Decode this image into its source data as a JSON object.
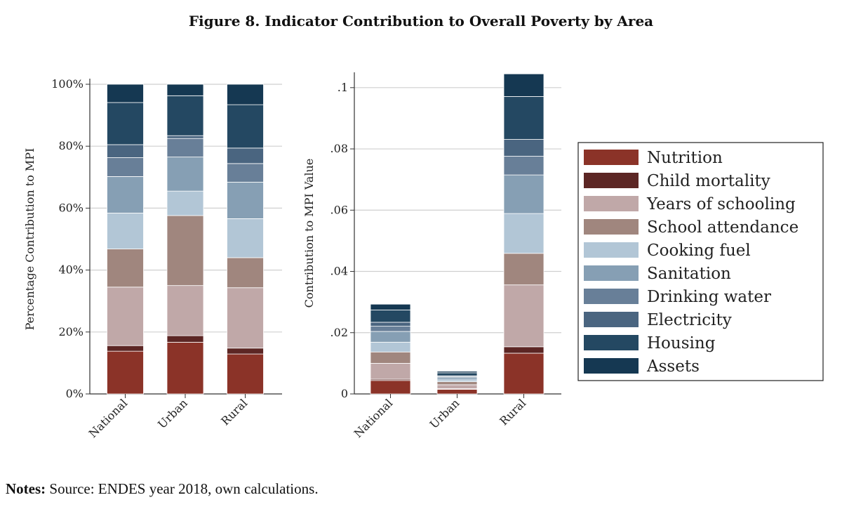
{
  "figure": {
    "title": "Figure 8. Indicator Contribution to Overall Poverty by Area",
    "notes_label": "Notes:",
    "notes_text": " Source: ENDES year 2018, own calculations."
  },
  "indicators": [
    {
      "name": "Nutrition",
      "color": "#8b3328"
    },
    {
      "name": "Child mortality",
      "color": "#5c2624"
    },
    {
      "name": "Years of schooling",
      "color": "#c0a8a8"
    },
    {
      "name": "School attendance",
      "color": "#a0867e"
    },
    {
      "name": "Cooking fuel",
      "color": "#b2c6d6"
    },
    {
      "name": "Sanitation",
      "color": "#869fb4"
    },
    {
      "name": "Drinking water",
      "color": "#687f98"
    },
    {
      "name": "Electricity",
      "color": "#4a6580"
    },
    {
      "name": "Housing",
      "color": "#244862"
    },
    {
      "name": "Assets",
      "color": "#153852"
    }
  ],
  "chart_data": [
    {
      "type": "bar",
      "stacked": true,
      "title": "",
      "xlabel": "",
      "ylabel": "Percentage Contribution to MPI",
      "ylim": [
        0,
        100
      ],
      "yticks": [
        0,
        20,
        40,
        60,
        80,
        100
      ],
      "ytick_labels": [
        "0%",
        "20%",
        "40%",
        "60%",
        "80%",
        "100%"
      ],
      "grid": true,
      "categories": [
        "National",
        "Urban",
        "Rural"
      ],
      "series": [
        {
          "name": "Nutrition",
          "values": [
            13.8,
            16.7,
            12.9
          ]
        },
        {
          "name": "Child mortality",
          "values": [
            1.8,
            2.1,
            1.9
          ]
        },
        {
          "name": "Years of schooling",
          "values": [
            18.9,
            16.2,
            19.5
          ]
        },
        {
          "name": "School attendance",
          "values": [
            12.3,
            22.6,
            9.7
          ]
        },
        {
          "name": "Cooking fuel",
          "values": [
            11.6,
            7.9,
            12.6
          ]
        },
        {
          "name": "Sanitation",
          "values": [
            11.8,
            11.0,
            11.8
          ]
        },
        {
          "name": "Drinking water",
          "values": [
            6.1,
            6.0,
            6.0
          ]
        },
        {
          "name": "Electricity",
          "values": [
            4.2,
            0.9,
            5.0
          ]
        },
        {
          "name": "Housing",
          "values": [
            13.6,
            12.9,
            14.0
          ]
        },
        {
          "name": "Assets",
          "values": [
            5.9,
            3.7,
            6.6
          ]
        }
      ]
    },
    {
      "type": "bar",
      "stacked": true,
      "title": "",
      "xlabel": "",
      "ylabel": "Contribution to MPI Value",
      "ylim": [
        0,
        0.105
      ],
      "yticks": [
        0,
        0.02,
        0.04,
        0.06,
        0.08,
        0.1
      ],
      "ytick_labels": [
        "0",
        ".02",
        ".04",
        ".06",
        ".08",
        ".1"
      ],
      "grid": true,
      "categories": [
        "National",
        "Urban",
        "Rural"
      ],
      "series": [
        {
          "name": "Nutrition",
          "values": [
            0.0044,
            0.0015,
            0.0133
          ]
        },
        {
          "name": "Child mortality",
          "values": [
            0.0004,
            0.0002,
            0.0021
          ]
        },
        {
          "name": "Years of schooling",
          "values": [
            0.0052,
            0.0013,
            0.0202
          ]
        },
        {
          "name": "School attendance",
          "values": [
            0.0037,
            0.001,
            0.0103
          ]
        },
        {
          "name": "Cooking fuel",
          "values": [
            0.0032,
            0.0006,
            0.013
          ]
        },
        {
          "name": "Sanitation",
          "values": [
            0.0035,
            0.0007,
            0.0126
          ]
        },
        {
          "name": "Drinking water",
          "values": [
            0.0017,
            0.0004,
            0.0061
          ]
        },
        {
          "name": "Electricity",
          "values": [
            0.0013,
            0.0002,
            0.0055
          ]
        },
        {
          "name": "Housing",
          "values": [
            0.004,
            0.001,
            0.014
          ]
        },
        {
          "name": "Assets",
          "values": [
            0.0019,
            0.0005,
            0.0074
          ]
        }
      ]
    }
  ]
}
